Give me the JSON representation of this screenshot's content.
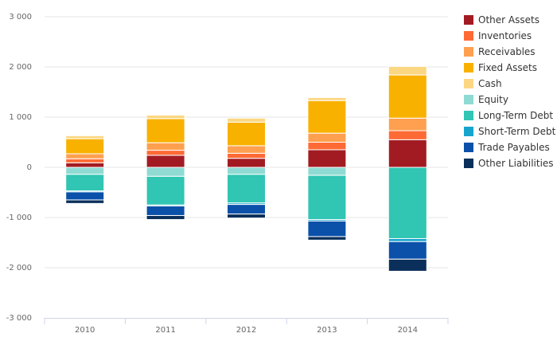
{
  "chart_data": {
    "type": "bar",
    "stacked": true,
    "categories": [
      "2010",
      "2011",
      "2012",
      "2013",
      "2014"
    ],
    "ylim": [
      -3000,
      3000
    ],
    "yticks": [
      -3000,
      -2000,
      -1000,
      0,
      1000,
      2000,
      3000
    ],
    "ytick_labels": [
      "-3 000",
      "-2 000",
      "-1 000",
      "0",
      "1 000",
      "2 000",
      "3 000"
    ],
    "grid": true,
    "legend_position": "right",
    "series": [
      {
        "name": "Other Assets",
        "color": "#A31B22",
        "values": [
          90,
          240,
          180,
          350,
          550
        ]
      },
      {
        "name": "Inventories",
        "color": "#FE6A35",
        "values": [
          80,
          100,
          100,
          150,
          180
        ]
      },
      {
        "name": "Receivables",
        "color": "#FEA04F",
        "values": [
          100,
          150,
          150,
          180,
          250
        ]
      },
      {
        "name": "Fixed Assets",
        "color": "#F9B100",
        "values": [
          300,
          480,
          470,
          650,
          860
        ]
      },
      {
        "name": "Cash",
        "color": "#FCD783",
        "values": [
          60,
          70,
          80,
          60,
          170
        ]
      },
      {
        "name": "Equity",
        "color": "#8FDBD3",
        "values": [
          -140,
          -180,
          -140,
          -160,
          0
        ]
      },
      {
        "name": "Long-Term Debt",
        "color": "#31C5B3",
        "values": [
          -330,
          -570,
          -570,
          -880,
          -1420
        ]
      },
      {
        "name": "Short-Term Debt",
        "color": "#17A5CE",
        "values": [
          -20,
          -20,
          -30,
          -30,
          -60
        ]
      },
      {
        "name": "Trade Payables",
        "color": "#0B51AA",
        "values": [
          -160,
          -190,
          -190,
          -310,
          -350
        ]
      },
      {
        "name": "Other Liabilities",
        "color": "#0A2F5A",
        "values": [
          -70,
          -80,
          -80,
          -70,
          -240
        ]
      }
    ]
  }
}
